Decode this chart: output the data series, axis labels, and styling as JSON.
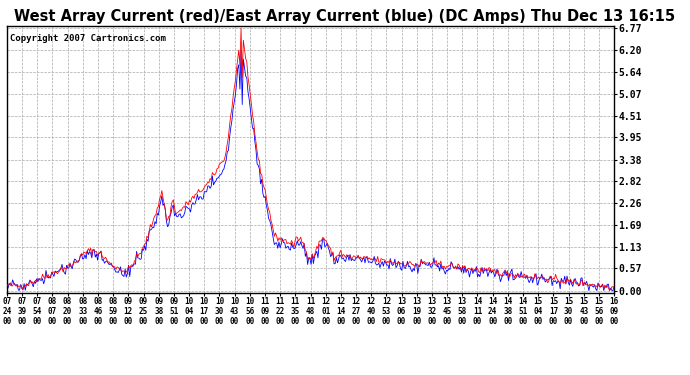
{
  "title": "West Array Current (red)/East Array Current (blue) (DC Amps) Thu Dec 13 16:15",
  "copyright": "Copyright 2007 Cartronics.com",
  "yticks": [
    0.0,
    0.57,
    1.13,
    1.69,
    2.26,
    2.82,
    3.38,
    3.95,
    4.51,
    5.07,
    5.64,
    6.2,
    6.77
  ],
  "ymax": 6.77,
  "ymin": 0.0,
  "xtick_labels": [
    "07:24",
    "07:39",
    "07:54",
    "08:07",
    "08:20",
    "08:33",
    "08:46",
    "08:59",
    "09:12",
    "09:25",
    "09:38",
    "09:51",
    "10:04",
    "10:17",
    "10:30",
    "10:43",
    "10:56",
    "11:09",
    "11:22",
    "11:35",
    "11:48",
    "12:01",
    "12:14",
    "12:27",
    "12:40",
    "12:53",
    "13:06",
    "13:19",
    "13:32",
    "13:45",
    "13:58",
    "14:11",
    "14:24",
    "14:38",
    "14:51",
    "15:04",
    "15:17",
    "15:30",
    "15:43",
    "15:56",
    "16:09"
  ],
  "background_color": "#ffffff",
  "plot_bg_color": "#ffffff",
  "grid_color": "#aaaaaa",
  "line_color_west": "#ff0000",
  "line_color_east": "#0000ff",
  "title_fontsize": 10.5,
  "copyright_fontsize": 6.5
}
